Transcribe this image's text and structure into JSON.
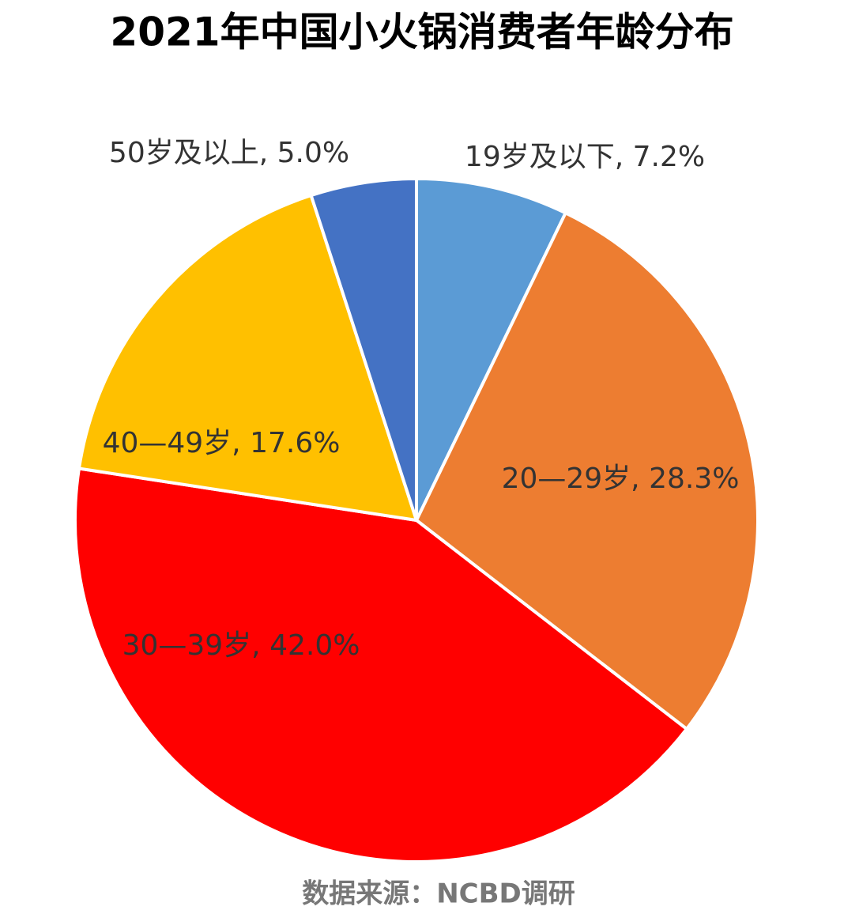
{
  "chart_data": {
    "type": "pie",
    "title": "2021年中国小火锅消费者年龄分布",
    "values": [
      7.2,
      28.3,
      42.0,
      17.6,
      5.0
    ],
    "value_labels": [
      "19岁及以下, 7.2%",
      "20—29岁, 28.3%",
      "30—39岁, 42.0%",
      "40—49岁, 17.6%",
      "50岁及以上, 5.0%"
    ],
    "colors": [
      "#5b9bd5",
      "#ed7d31",
      "#ff0000",
      "#ffc000",
      "#4472c4"
    ],
    "source": "数据来源：NCBD调研"
  }
}
